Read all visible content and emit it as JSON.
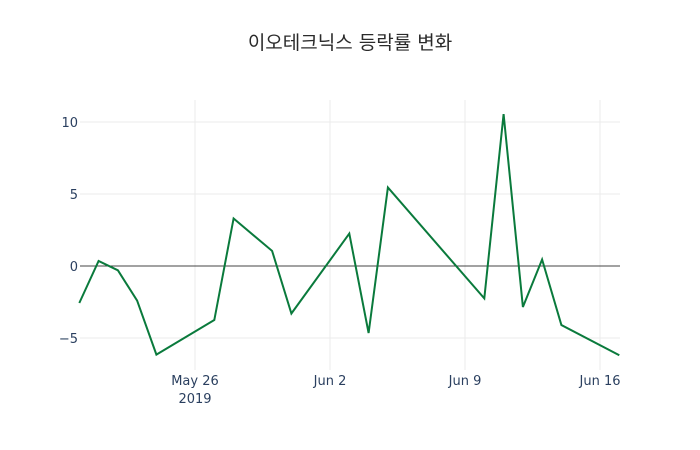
{
  "chart_data": {
    "type": "line",
    "title": "이오테크닉스 등락률 변화",
    "xlabel": "",
    "ylabel": "",
    "x": [
      "2019-05-20",
      "2019-05-21",
      "2019-05-22",
      "2019-05-23",
      "2019-05-24",
      "2019-05-27",
      "2019-05-28",
      "2019-05-30",
      "2019-05-31",
      "2019-06-03",
      "2019-06-04",
      "2019-06-05",
      "2019-06-10",
      "2019-06-11",
      "2019-06-12",
      "2019-06-13",
      "2019-06-14",
      "2019-06-17"
    ],
    "series": [
      {
        "name": "등락률",
        "color": "#0a7a3c",
        "values": [
          -2.57,
          0.35,
          -0.3,
          -2.4,
          -6.15,
          -3.75,
          3.3,
          1.05,
          -3.3,
          2.25,
          -4.65,
          5.45,
          -2.25,
          10.55,
          -2.85,
          0.45,
          -4.1,
          -6.2
        ]
      }
    ],
    "ylim": [
      -7,
      11.8
    ],
    "yticks": [
      10,
      5,
      0,
      -5
    ],
    "ytick_labels": [
      "10",
      "5",
      "0",
      "−5"
    ],
    "xticks": [
      "2019-05-26",
      "2019-06-02",
      "2019-06-09",
      "2019-06-16"
    ],
    "xtick_labels": [
      "May 26",
      "Jun 2",
      "Jun 9",
      "Jun 16"
    ],
    "xtick_sublabel": "2019",
    "grid": true,
    "zeroline": true,
    "legend": false
  }
}
